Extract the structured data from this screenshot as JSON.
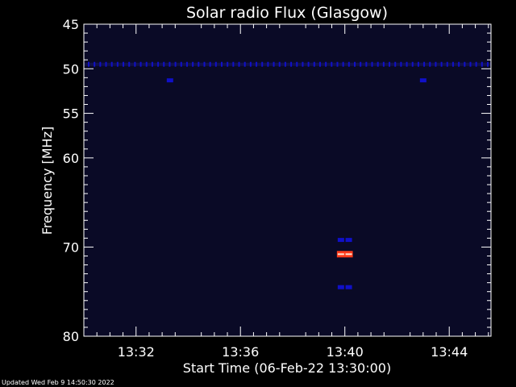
{
  "chart_data": {
    "type": "heatmap",
    "title": "Solar radio Flux (Glasgow)",
    "xlabel": "Start Time (06-Feb-22 13:30:00)",
    "ylabel": "Frequency [MHz]",
    "x_unit": "minutes after 13:30:00",
    "xlim": [
      0,
      15.6
    ],
    "ylim": [
      45,
      80
    ],
    "y_inverted": true,
    "x_ticks": [
      {
        "value": 2,
        "label": "13:32"
      },
      {
        "value": 6,
        "label": "13:36"
      },
      {
        "value": 10,
        "label": "13:40"
      },
      {
        "value": 14,
        "label": "13:44"
      }
    ],
    "y_ticks": [
      {
        "value": 45,
        "label": "45"
      },
      {
        "value": 50,
        "label": "50"
      },
      {
        "value": 55,
        "label": "55"
      },
      {
        "value": 60,
        "label": "60"
      },
      {
        "value": 70,
        "label": "70"
      },
      {
        "value": 80,
        "label": "80"
      }
    ],
    "background_color": "#0a0a26",
    "colors": {
      "low": "#0a0a26",
      "mid": "#1010c8",
      "high": "#ff3a1a",
      "peak": "#ffe0d0"
    },
    "features": [
      {
        "kind": "band",
        "freq_mhz": 49.5,
        "intensity": "mid"
      },
      {
        "kind": "spot",
        "time_min": 3.3,
        "freq_mhz": 51.3,
        "intensity": "mid"
      },
      {
        "kind": "spot",
        "time_min": 13.0,
        "freq_mhz": 51.3,
        "intensity": "mid"
      },
      {
        "kind": "spot",
        "time_min": 9.85,
        "freq_mhz": 69.2,
        "intensity": "mid"
      },
      {
        "kind": "spot",
        "time_min": 10.15,
        "freq_mhz": 69.2,
        "intensity": "mid"
      },
      {
        "kind": "spot",
        "time_min": 9.85,
        "freq_mhz": 70.8,
        "intensity": "high"
      },
      {
        "kind": "spot",
        "time_min": 10.15,
        "freq_mhz": 70.8,
        "intensity": "high"
      },
      {
        "kind": "spot",
        "time_min": 9.85,
        "freq_mhz": 74.5,
        "intensity": "mid"
      },
      {
        "kind": "spot",
        "time_min": 10.15,
        "freq_mhz": 74.5,
        "intensity": "mid"
      }
    ]
  },
  "footer": {
    "updated": "Updated Wed Feb  9 14:50:30 2022"
  }
}
